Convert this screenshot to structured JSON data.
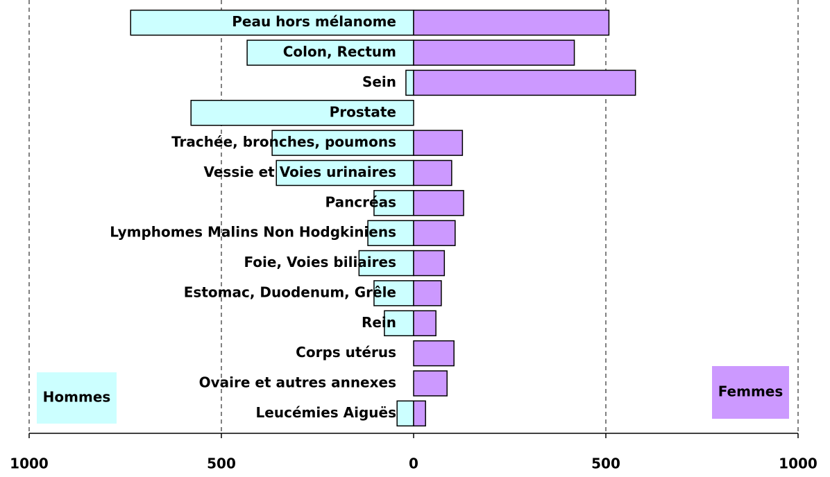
{
  "chart_data": {
    "type": "pyramid",
    "categories": [
      "Peau hors mélanome",
      "Colon, Rectum",
      "Sein",
      "Prostate",
      "Trachée, bronches, poumons",
      "Vessie et Voies urinaires",
      "Pancréas",
      "Lymphomes Malins Non Hodgkiniens",
      "Foie, Voies biliaires",
      "Estomac, Duodenum, Grêle",
      "Rein",
      "Corps utérus",
      "Ovaire et autres annexes",
      "Leucémies Aiguës"
    ],
    "series": [
      {
        "name": "Hommes",
        "color": "#ccffff",
        "side": "left",
        "values": [
          736,
          433,
          20,
          579,
          368,
          357,
          103,
          119,
          142,
          103,
          76,
          0,
          0,
          43
        ]
      },
      {
        "name": "Femmes",
        "color": "#cc99ff",
        "side": "right",
        "values": [
          508,
          418,
          577,
          0,
          127,
          99,
          130,
          108,
          80,
          72,
          58,
          105,
          87,
          31
        ]
      }
    ],
    "xlim": [
      -1000,
      1000
    ],
    "xticks": [
      {
        "value": -1000,
        "label": "1000"
      },
      {
        "value": -500,
        "label": "500"
      },
      0,
      500,
      1000
    ],
    "grid": true
  }
}
